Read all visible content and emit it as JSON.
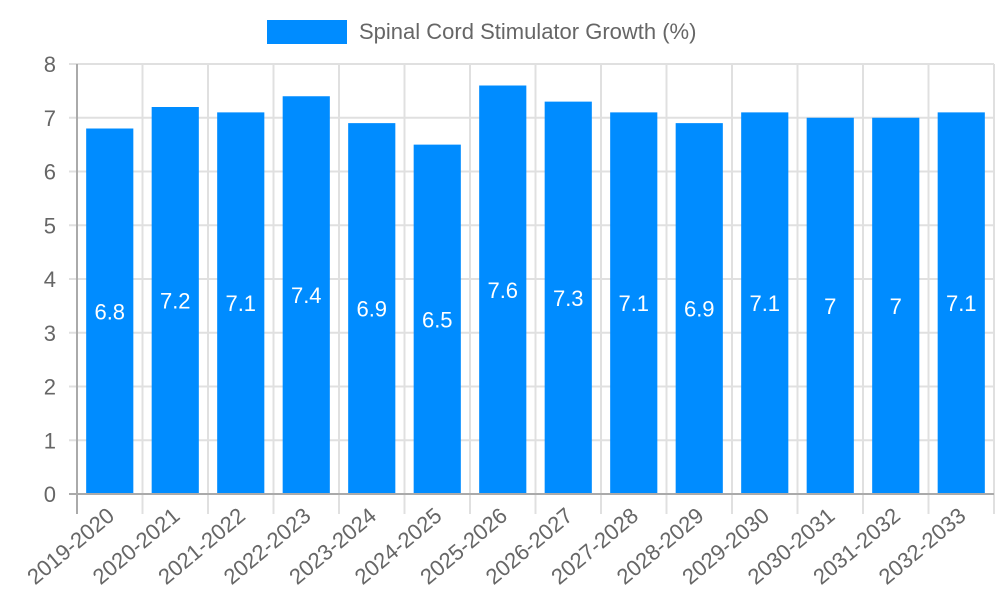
{
  "chart_data": {
    "type": "bar",
    "title": "",
    "xlabel": "",
    "ylabel": "",
    "legend": [
      "Spinal Cord Stimulator Growth (%)"
    ],
    "legend_position": "top",
    "grid": true,
    "ylim": [
      0,
      8
    ],
    "yticks": [
      0,
      1,
      2,
      3,
      4,
      5,
      6,
      7,
      8
    ],
    "categories": [
      "2019-2020",
      "2020-2021",
      "2021-2022",
      "2022-2023",
      "2023-2024",
      "2024-2025",
      "2025-2026",
      "2026-2027",
      "2027-2028",
      "2028-2029",
      "2029-2030",
      "2030-2031",
      "2031-2032",
      "2032-2033"
    ],
    "series": [
      {
        "name": "Spinal Cord Stimulator Growth (%)",
        "color": "#008cff",
        "values": [
          6.8,
          7.2,
          7.1,
          7.4,
          6.9,
          6.5,
          7.6,
          7.3,
          7.1,
          6.9,
          7.1,
          7,
          7,
          7.1
        ]
      }
    ]
  },
  "legend": {
    "label": "Spinal Cord Stimulator Growth (%)",
    "color": "#008cff"
  }
}
